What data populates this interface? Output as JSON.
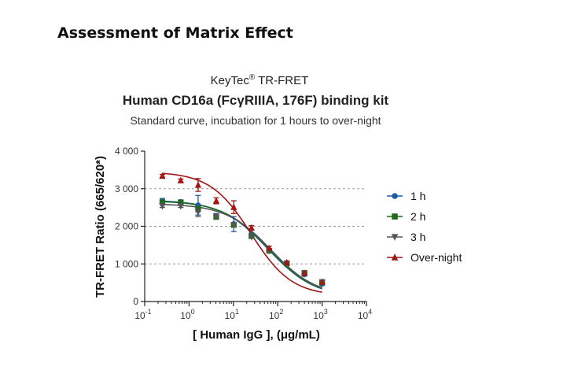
{
  "page": {
    "heading": "Assessment of Matrix Effect"
  },
  "chart_data": {
    "type": "scatter",
    "title_brand": "KeyTec",
    "title_brand_mark": "®",
    "title_line1_rest": " TR-FRET",
    "title_line2": "Human CD16a (FcγRIIIA, 176F) binding kit",
    "subtitle": "Standard curve,  incubation for 1 hours to over-night",
    "xlabel": "[ Human IgG ],  (μg/mL)",
    "ylabel": "TR-FRET Ratio (665/620*)",
    "xscale": "log",
    "xlim": [
      0.1,
      10000
    ],
    "ylim": [
      0,
      4000
    ],
    "xticks": [
      {
        "base": "10",
        "exp": "-1",
        "value": 0.1
      },
      {
        "base": "10",
        "exp": "0",
        "value": 1
      },
      {
        "base": "10",
        "exp": "1",
        "value": 10
      },
      {
        "base": "10",
        "exp": "2",
        "value": 100
      },
      {
        "base": "10",
        "exp": "3",
        "value": 1000
      },
      {
        "base": "10",
        "exp": "4",
        "value": 10000
      }
    ],
    "yticks": [
      {
        "label": "0",
        "value": 0
      },
      {
        "label": "1 000",
        "value": 1000
      },
      {
        "label": "2 000",
        "value": 2000
      },
      {
        "label": "3 000",
        "value": 3000
      },
      {
        "label": "4 000",
        "value": 4000
      }
    ],
    "gridlines": "horizontal dashed at 1000, 2000, 3000",
    "legend_position": "right",
    "x": [
      0.25,
      0.65,
      1.6,
      4.1,
      10.2,
      25.6,
      64,
      160,
      400,
      1000
    ],
    "series": [
      {
        "name": "1 h",
        "color": "#1f5aa6",
        "marker": "circle",
        "values": [
          2680,
          2650,
          2560,
          2280,
          2060,
          1760,
          1360,
          1000,
          720,
          470
        ],
        "errors": [
          60,
          50,
          260,
          60,
          200,
          60,
          50,
          40,
          40,
          40
        ]
      },
      {
        "name": "2 h",
        "color": "#1e6b1e",
        "marker": "square",
        "values": [
          2640,
          2640,
          2470,
          2250,
          2040,
          1740,
          1350,
          1010,
          760,
          510
        ],
        "errors": [
          40,
          40,
          80,
          60,
          60,
          50,
          40,
          40,
          40,
          40
        ]
      },
      {
        "name": "3 h",
        "color": "#555555",
        "marker": "triangle-down",
        "values": [
          2540,
          2540,
          2380,
          2260,
          2040,
          1720,
          1350,
          1010,
          750,
          520
        ],
        "errors": [
          40,
          40,
          120,
          40,
          60,
          40,
          40,
          40,
          40,
          40
        ]
      },
      {
        "name": "Over-night",
        "color": "#a11515",
        "marker": "triangle-up",
        "values": [
          3340,
          3220,
          3100,
          2680,
          2510,
          1960,
          1420,
          1040,
          760,
          520
        ],
        "errors": [
          40,
          40,
          170,
          80,
          170,
          60,
          50,
          40,
          40,
          40
        ]
      }
    ],
    "fits": [
      {
        "top": 2700,
        "bottom": 100,
        "logEC50": 1.78,
        "hill": 0.82
      },
      {
        "top": 2680,
        "bottom": 120,
        "logEC50": 1.8,
        "hill": 0.84
      },
      {
        "top": 2600,
        "bottom": 140,
        "logEC50": 1.85,
        "hill": 0.86
      },
      {
        "top": 3450,
        "bottom": 150,
        "logEC50": 1.4,
        "hill": 0.95
      }
    ]
  }
}
